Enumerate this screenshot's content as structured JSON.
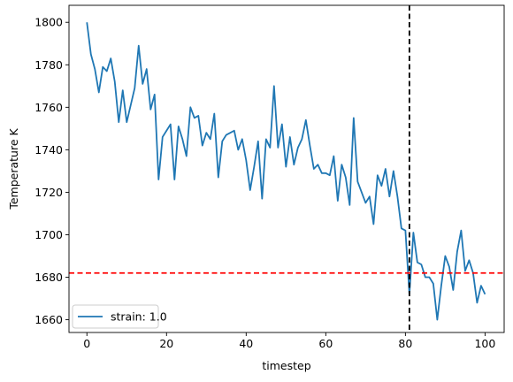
{
  "chart_data": {
    "type": "line",
    "xlabel": "timestep",
    "ylabel": "Temperature K",
    "xlim": [
      -4.5,
      104.8
    ],
    "ylim": [
      1654,
      1808
    ],
    "xticks": [
      0,
      20,
      40,
      60,
      80,
      100
    ],
    "yticks": [
      1660,
      1680,
      1700,
      1720,
      1740,
      1760,
      1780,
      1800
    ],
    "legend": {
      "position": "bottom-left"
    },
    "grid": false,
    "series": [
      {
        "name": "strain: 1.0",
        "color": "#1f77b4",
        "x": [
          0,
          1,
          2,
          3,
          4,
          5,
          6,
          7,
          8,
          9,
          10,
          11,
          12,
          13,
          14,
          15,
          16,
          17,
          18,
          19,
          20,
          21,
          22,
          23,
          24,
          25,
          26,
          27,
          28,
          29,
          30,
          31,
          32,
          33,
          34,
          35,
          36,
          37,
          38,
          39,
          40,
          41,
          42,
          43,
          44,
          45,
          46,
          47,
          48,
          49,
          50,
          51,
          52,
          53,
          54,
          55,
          56,
          57,
          58,
          59,
          60,
          61,
          62,
          63,
          64,
          65,
          66,
          67,
          68,
          69,
          70,
          71,
          72,
          73,
          74,
          75,
          76,
          77,
          78,
          79,
          80,
          81,
          82,
          83,
          84,
          85,
          86,
          87,
          88,
          89,
          90,
          91,
          92,
          93,
          94,
          95,
          96,
          97,
          98,
          99,
          100
        ],
        "y": [
          1800,
          1785,
          1778,
          1767,
          1779,
          1777,
          1783,
          1772,
          1753,
          1768,
          1753,
          1761,
          1769,
          1789,
          1771,
          1778,
          1759,
          1766,
          1726,
          1746,
          1749,
          1752,
          1726,
          1751,
          1745,
          1737,
          1760,
          1755,
          1756,
          1742,
          1748,
          1745,
          1757,
          1727,
          1744,
          1747,
          1748,
          1749,
          1740,
          1745,
          1735,
          1721,
          1732,
          1744,
          1717,
          1745,
          1741,
          1770,
          1741,
          1752,
          1732,
          1746,
          1733,
          1741,
          1745,
          1754,
          1742,
          1731,
          1733,
          1729,
          1729,
          1728,
          1737,
          1716,
          1733,
          1727,
          1714,
          1755,
          1725,
          1720,
          1715,
          1718,
          1705,
          1728,
          1723,
          1731,
          1718,
          1730,
          1718,
          1703,
          1702,
          1672,
          1701,
          1687,
          1686,
          1680,
          1680,
          1677,
          1660,
          1676,
          1690,
          1685,
          1674,
          1692,
          1702,
          1683,
          1688,
          1682,
          1668,
          1676,
          1672
        ]
      }
    ],
    "reference_lines": [
      {
        "orientation": "horizontal",
        "value": 1682,
        "color": "#ff0000",
        "style": "dashed"
      },
      {
        "orientation": "vertical",
        "value": 81,
        "color": "#000000",
        "style": "dashed"
      }
    ]
  }
}
